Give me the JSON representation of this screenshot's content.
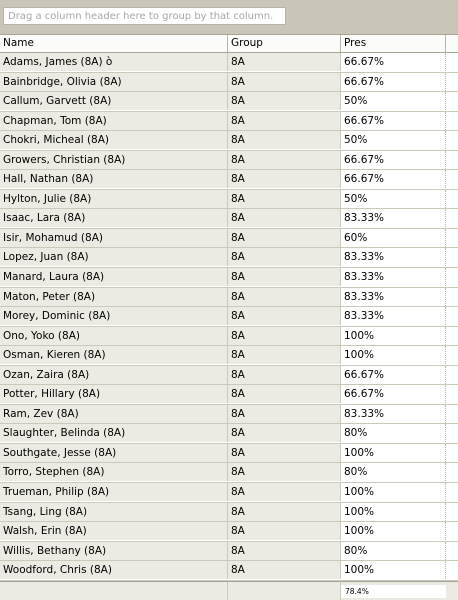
{
  "group_panel": {
    "hint": "Drag a column header here to group by that column."
  },
  "columns": {
    "name": "Name",
    "group": "Group",
    "pres": "Pres"
  },
  "rows": [
    {
      "name": "Adams, James (8A)    ò",
      "group": "8A",
      "pres": "66.67%"
    },
    {
      "name": "Bainbridge, Olivia (8A)",
      "group": "8A",
      "pres": "66.67%"
    },
    {
      "name": "Callum, Garvett (8A)",
      "group": "8A",
      "pres": "50%"
    },
    {
      "name": "Chapman, Tom (8A)",
      "group": "8A",
      "pres": "66.67%"
    },
    {
      "name": "Chokri, Micheal (8A)",
      "group": "8A",
      "pres": "50%"
    },
    {
      "name": "Growers, Christian (8A)",
      "group": "8A",
      "pres": "66.67%"
    },
    {
      "name": "Hall, Nathan (8A)",
      "group": "8A",
      "pres": "66.67%"
    },
    {
      "name": "Hylton, Julie (8A)",
      "group": "8A",
      "pres": "50%"
    },
    {
      "name": "Isaac, Lara (8A)",
      "group": "8A",
      "pres": "83.33%"
    },
    {
      "name": "Isir, Mohamud (8A)",
      "group": "8A",
      "pres": "60%"
    },
    {
      "name": "Lopez, Juan (8A)",
      "group": "8A",
      "pres": "83.33%"
    },
    {
      "name": "Manard, Laura (8A)",
      "group": "8A",
      "pres": "83.33%"
    },
    {
      "name": "Maton, Peter (8A)",
      "group": "8A",
      "pres": "83.33%"
    },
    {
      "name": "Morey, Dominic (8A)",
      "group": "8A",
      "pres": "83.33%"
    },
    {
      "name": "Ono, Yoko (8A)",
      "group": "8A",
      "pres": "100%"
    },
    {
      "name": "Osman, Kieren (8A)",
      "group": "8A",
      "pres": "100%"
    },
    {
      "name": "Ozan, Zaira (8A)",
      "group": "8A",
      "pres": "66.67%"
    },
    {
      "name": "Potter, Hillary (8A)",
      "group": "8A",
      "pres": "66.67%"
    },
    {
      "name": "Ram, Zev (8A)",
      "group": "8A",
      "pres": "83.33%"
    },
    {
      "name": "Slaughter, Belinda (8A)",
      "group": "8A",
      "pres": "80%"
    },
    {
      "name": "Southgate, Jesse (8A)",
      "group": "8A",
      "pres": "100%"
    },
    {
      "name": "Torro, Stephen (8A)",
      "group": "8A",
      "pres": "80%"
    },
    {
      "name": "Trueman, Philip (8A)",
      "group": "8A",
      "pres": "100%"
    },
    {
      "name": "Tsang, Ling (8A)",
      "group": "8A",
      "pres": "100%"
    },
    {
      "name": "Walsh, Erin (8A)",
      "group": "8A",
      "pres": "100%"
    },
    {
      "name": "Willis, Bethany (8A)",
      "group": "8A",
      "pres": "80%"
    },
    {
      "name": "Woodford, Chris (8A)",
      "group": "8A",
      "pres": "100%"
    }
  ],
  "footer": {
    "pres_total": "78.4%"
  }
}
